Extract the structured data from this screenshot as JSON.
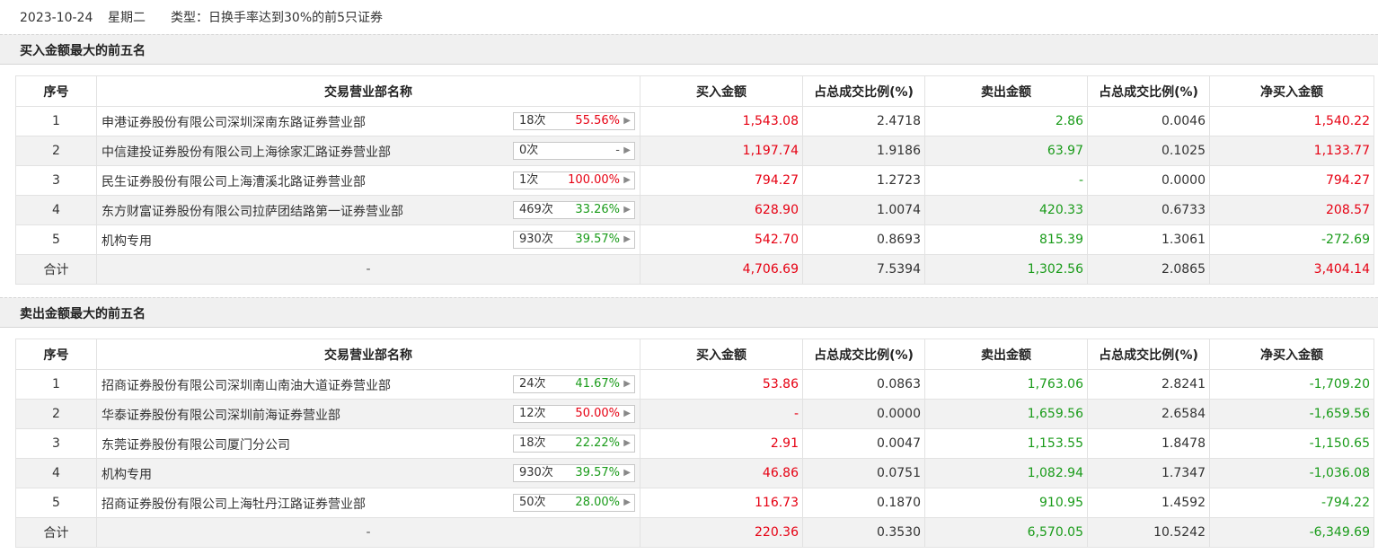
{
  "header": {
    "date": "2023-10-24",
    "weekday": "星期二",
    "type_text": "类型：日换手率达到30%的前5只证券"
  },
  "columns": [
    "序号",
    "交易营业部名称",
    "买入金额",
    "占总成交比例(%)",
    "卖出金额",
    "占总成交比例(%)",
    "净买入金额"
  ],
  "buy_section": {
    "title": "买入金额最大的前五名",
    "rows": [
      {
        "idx": "1",
        "name": "申港证券股份有限公司深圳深南东路证券营业部",
        "count": "18次",
        "pct": "55.56%",
        "pct_color": "red",
        "buy": "1,543.08",
        "buy_color": "red",
        "buy_ratio": "2.4718",
        "sell": "2.86",
        "sell_color": "green",
        "sell_ratio": "0.0046",
        "net": "1,540.22",
        "net_color": "red"
      },
      {
        "idx": "2",
        "name": "中信建投证券股份有限公司上海徐家汇路证券营业部",
        "count": "0次",
        "pct": "-",
        "pct_color": "gray",
        "buy": "1,197.74",
        "buy_color": "red",
        "buy_ratio": "1.9186",
        "sell": "63.97",
        "sell_color": "green",
        "sell_ratio": "0.1025",
        "net": "1,133.77",
        "net_color": "red"
      },
      {
        "idx": "3",
        "name": "民生证券股份有限公司上海漕溪北路证券营业部",
        "count": "1次",
        "pct": "100.00%",
        "pct_color": "red",
        "buy": "794.27",
        "buy_color": "red",
        "buy_ratio": "1.2723",
        "sell": "-",
        "sell_color": "green",
        "sell_ratio": "0.0000",
        "net": "794.27",
        "net_color": "red"
      },
      {
        "idx": "4",
        "name": "东方财富证券股份有限公司拉萨团结路第一证券营业部",
        "count": "469次",
        "pct": "33.26%",
        "pct_color": "green",
        "buy": "628.90",
        "buy_color": "red",
        "buy_ratio": "1.0074",
        "sell": "420.33",
        "sell_color": "green",
        "sell_ratio": "0.6733",
        "net": "208.57",
        "net_color": "red"
      },
      {
        "idx": "5",
        "name": "机构专用",
        "count": "930次",
        "pct": "39.57%",
        "pct_color": "green",
        "buy": "542.70",
        "buy_color": "red",
        "buy_ratio": "0.8693",
        "sell": "815.39",
        "sell_color": "green",
        "sell_ratio": "1.3061",
        "net": "-272.69",
        "net_color": "green"
      }
    ],
    "total": {
      "label": "合计",
      "name": "-",
      "buy": "4,706.69",
      "buy_ratio": "7.5394",
      "sell": "1,302.56",
      "sell_ratio": "2.0865",
      "net": "3,404.14",
      "net_color": "red"
    }
  },
  "sell_section": {
    "title": "卖出金额最大的前五名",
    "rows": [
      {
        "idx": "1",
        "name": "招商证券股份有限公司深圳南山南油大道证券营业部",
        "count": "24次",
        "pct": "41.67%",
        "pct_color": "green",
        "buy": "53.86",
        "buy_color": "red",
        "buy_ratio": "0.0863",
        "sell": "1,763.06",
        "sell_color": "green",
        "sell_ratio": "2.8241",
        "net": "-1,709.20",
        "net_color": "green"
      },
      {
        "idx": "2",
        "name": "华泰证券股份有限公司深圳前海证券营业部",
        "count": "12次",
        "pct": "50.00%",
        "pct_color": "red",
        "buy": "-",
        "buy_color": "red",
        "buy_ratio": "0.0000",
        "sell": "1,659.56",
        "sell_color": "green",
        "sell_ratio": "2.6584",
        "net": "-1,659.56",
        "net_color": "green"
      },
      {
        "idx": "3",
        "name": "东莞证券股份有限公司厦门分公司",
        "count": "18次",
        "pct": "22.22%",
        "pct_color": "green",
        "buy": "2.91",
        "buy_color": "red",
        "buy_ratio": "0.0047",
        "sell": "1,153.55",
        "sell_color": "green",
        "sell_ratio": "1.8478",
        "net": "-1,150.65",
        "net_color": "green"
      },
      {
        "idx": "4",
        "name": "机构专用",
        "count": "930次",
        "pct": "39.57%",
        "pct_color": "green",
        "buy": "46.86",
        "buy_color": "red",
        "buy_ratio": "0.0751",
        "sell": "1,082.94",
        "sell_color": "green",
        "sell_ratio": "1.7347",
        "net": "-1,036.08",
        "net_color": "green"
      },
      {
        "idx": "5",
        "name": "招商证券股份有限公司上海牡丹江路证券营业部",
        "count": "50次",
        "pct": "28.00%",
        "pct_color": "green",
        "buy": "116.73",
        "buy_color": "red",
        "buy_ratio": "0.1870",
        "sell": "910.95",
        "sell_color": "green",
        "sell_ratio": "1.4592",
        "net": "-794.22",
        "net_color": "green"
      }
    ],
    "total": {
      "label": "合计",
      "name": "-",
      "buy": "220.36",
      "buy_ratio": "0.3530",
      "sell": "6,570.05",
      "sell_ratio": "10.5242",
      "net": "-6,349.69",
      "net_color": "green"
    }
  },
  "colors": {
    "up": "#e60012",
    "down": "#1a9b1a",
    "neutral": "#333333"
  }
}
